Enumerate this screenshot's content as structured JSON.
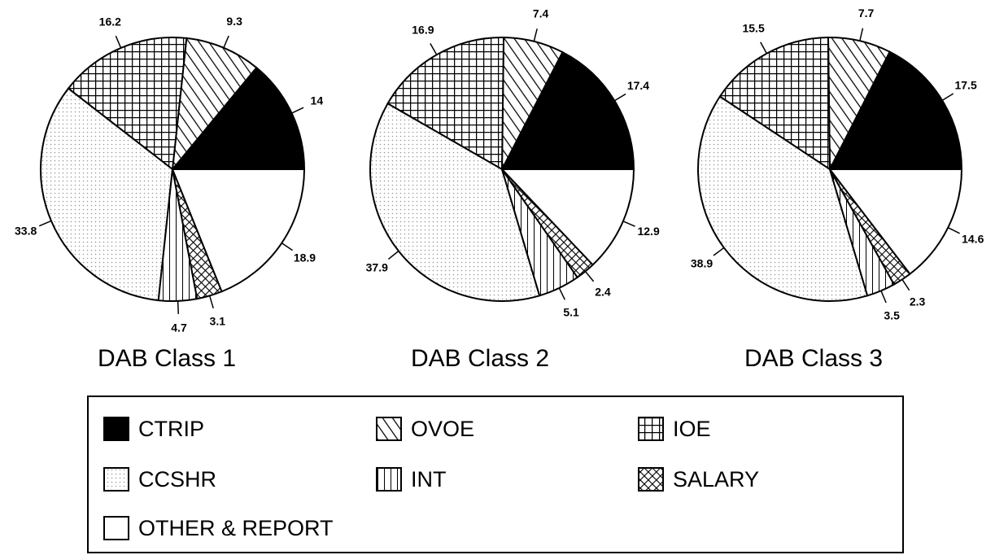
{
  "chart_data": [
    {
      "type": "pie",
      "title": "DAB Class 1",
      "values": [
        14,
        9.3,
        16.2,
        33.8,
        4.7,
        3.1,
        18.9
      ]
    },
    {
      "type": "pie",
      "title": "DAB Class 2",
      "values": [
        17.4,
        7.4,
        16.9,
        37.9,
        5.1,
        2.4,
        12.9
      ]
    },
    {
      "type": "pie",
      "title": "DAB Class 3",
      "values": [
        17.5,
        7.7,
        15.5,
        38.9,
        3.5,
        2.3,
        14.6
      ]
    }
  ],
  "legend": {
    "categories": [
      "CTRIP",
      "OVOE",
      "IOE",
      "CCSHR",
      "INT",
      "SALARY",
      "OTHER & REPORT"
    ],
    "fills": [
      "solid",
      "diagonal",
      "grid",
      "dots",
      "vertical",
      "crosshatch",
      "none"
    ]
  }
}
